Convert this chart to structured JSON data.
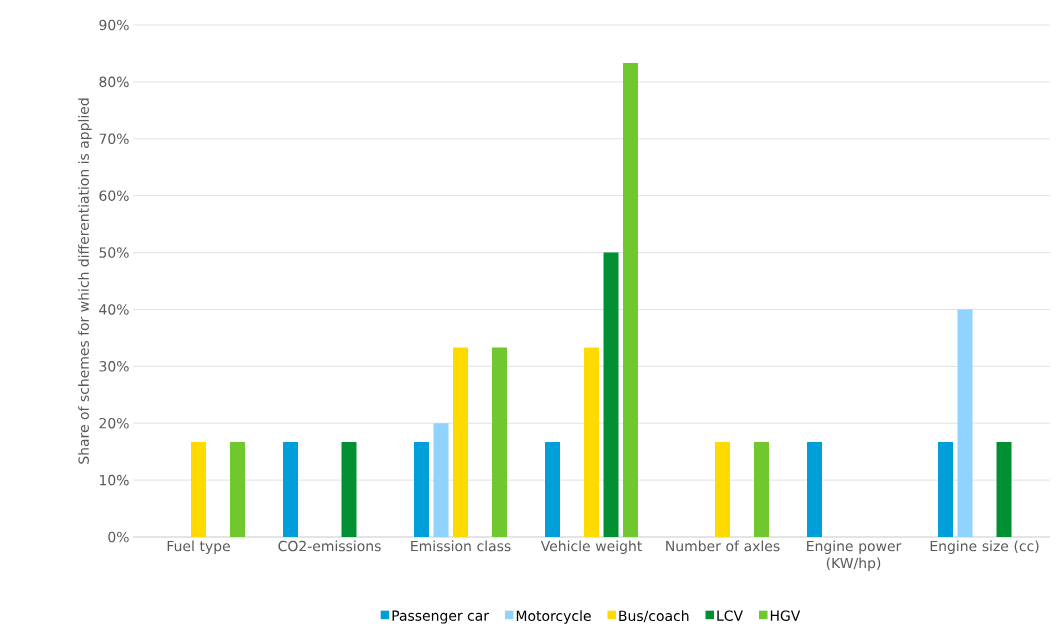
{
  "chart_data": {
    "type": "bar",
    "ylabel": "Share of schemes for which differentiation is applied",
    "categories": [
      "Fuel type",
      "CO2-emissions",
      "Emission class",
      "Vehicle weight",
      "Number of axles",
      "Engine power (KW/hp)",
      "Engine size (cc)"
    ],
    "series": [
      {
        "name": "Passenger car",
        "color": "#009fda",
        "values": [
          null,
          16.7,
          16.7,
          16.7,
          null,
          16.7,
          16.7
        ]
      },
      {
        "name": "Motorcycle",
        "color": "#8fd3fe",
        "values": [
          null,
          null,
          20,
          null,
          null,
          null,
          40
        ]
      },
      {
        "name": "Bus/coach",
        "color": "#ffda00",
        "values": [
          16.7,
          null,
          33.3,
          33.3,
          16.7,
          null,
          null
        ]
      },
      {
        "name": "LCV",
        "color": "#009033",
        "values": [
          null,
          16.7,
          null,
          50,
          null,
          null,
          16.7
        ]
      },
      {
        "name": "HGV",
        "color": "#70c72f",
        "values": [
          16.7,
          null,
          33.3,
          83.3,
          16.7,
          null,
          null
        ]
      }
    ],
    "ylim": [
      0,
      90
    ],
    "yticks": [
      {
        "value": 0,
        "label": "0%"
      },
      {
        "value": 10,
        "label": "10%"
      },
      {
        "value": 20,
        "label": "20%"
      },
      {
        "value": 30,
        "label": "30%"
      },
      {
        "value": 40,
        "label": "40%"
      },
      {
        "value": 50,
        "label": "50%"
      },
      {
        "value": 60,
        "label": "60%"
      },
      {
        "value": 70,
        "label": "70%"
      },
      {
        "value": 80,
        "label": "80%"
      },
      {
        "value": 90,
        "label": "90%"
      }
    ],
    "grid": "y",
    "legend": "bottom"
  }
}
